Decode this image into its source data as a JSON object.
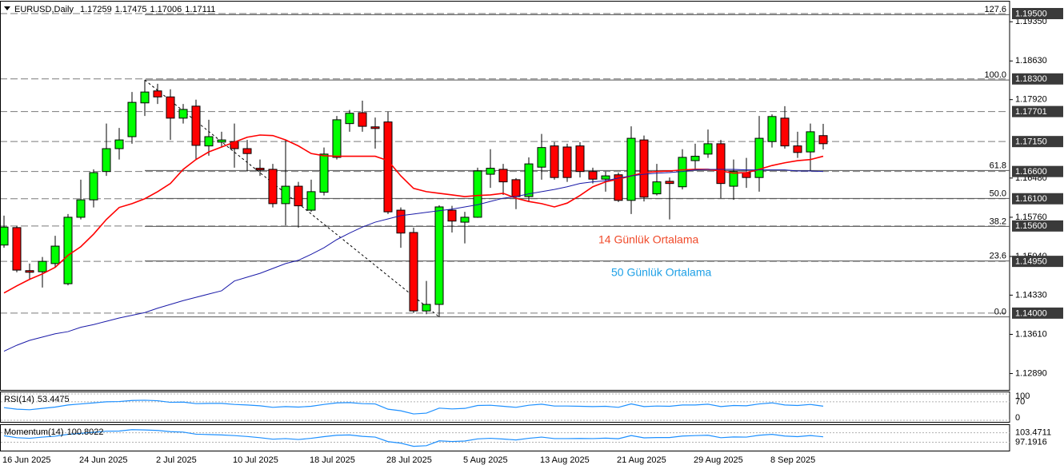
{
  "chart_data": {
    "type": "candlestick",
    "header": {
      "symbol": "EURUSD,Daily",
      "open": 1.17259,
      "high": 1.17475,
      "low": 1.17006,
      "close": 1.17111
    },
    "x": [
      "16 Jun 2025",
      null,
      null,
      null,
      null,
      null,
      "24 Jun 2025",
      null,
      null,
      null,
      null,
      null,
      "2 Jul 2025",
      null,
      null,
      null,
      null,
      null,
      "10 Jul 2025",
      null,
      null,
      null,
      null,
      null,
      "18 Jul 2025",
      null,
      null,
      null,
      null,
      null,
      "28 Jul 2025",
      null,
      null,
      null,
      null,
      null,
      "5 Aug 2025",
      null,
      null,
      null,
      null,
      null,
      "13 Aug 2025",
      null,
      null,
      null,
      null,
      null,
      "21 Aug 2025",
      null,
      null,
      null,
      null,
      null,
      "29 Aug 2025",
      null,
      null,
      null,
      null,
      null,
      "8 Sep 2025",
      null,
      null,
      null,
      null
    ],
    "open": [
      1.1525,
      1.1557,
      1.1478,
      1.1476,
      1.1491,
      1.1454,
      1.1576,
      1.1608,
      1.166,
      1.1702,
      1.1724,
      1.1786,
      1.1808,
      1.1797,
      1.1758,
      1.178,
      1.1707,
      1.1714,
      1.1715,
      1.1702,
      1.1666,
      1.1664,
      1.1601,
      1.1633,
      1.1589,
      1.1622,
      1.1686,
      1.1748,
      1.1768,
      1.1742,
      1.1751,
      1.1589,
      1.1548,
      1.1404,
      1.1416,
      1.1589,
      1.1567,
      1.1576,
      1.1655,
      1.1664,
      1.1645,
      1.1614,
      1.1668,
      1.1707,
      1.1705,
      1.1707,
      1.166,
      1.1646,
      1.1654,
      1.1607,
      1.1718,
      1.1619,
      1.1642,
      1.1632,
      1.168,
      1.1692,
      1.1711,
      1.1633,
      1.1658,
      1.1649,
      1.1715,
      1.1758,
      1.1707,
      1.1696,
      1.17259
    ],
    "high": [
      1.1579,
      1.156,
      1.1491,
      1.1503,
      1.1542,
      1.1582,
      1.1645,
      1.1664,
      1.1748,
      1.174,
      1.1806,
      1.1828,
      1.1821,
      1.1811,
      1.1784,
      1.1792,
      1.1755,
      1.1733,
      1.1748,
      1.1718,
      1.1682,
      1.1674,
      1.1718,
      1.1641,
      1.1645,
      1.1704,
      1.1762,
      1.1773,
      1.179,
      1.1759,
      1.177,
      1.1594,
      1.1557,
      1.1459,
      1.1598,
      1.1597,
      1.1586,
      1.1667,
      1.1701,
      1.1674,
      1.1648,
      1.1686,
      1.1729,
      1.1714,
      1.1711,
      1.1714,
      1.1667,
      1.166,
      1.1658,
      1.1743,
      1.1726,
      1.1674,
      1.1649,
      1.1701,
      1.1711,
      1.1737,
      1.1718,
      1.1682,
      1.1685,
      1.1762,
      1.1765,
      1.178,
      1.1733,
      1.1748,
      1.17475
    ],
    "low": [
      1.152,
      1.1475,
      1.1462,
      1.1447,
      1.1484,
      1.1451,
      1.1572,
      1.1594,
      1.1652,
      1.1682,
      1.1711,
      1.1762,
      1.1784,
      1.1718,
      1.1748,
      1.1682,
      1.1689,
      1.1704,
      1.1667,
      1.166,
      1.1652,
      1.1594,
      1.1561,
      1.1557,
      1.1586,
      1.1616,
      1.1682,
      1.1733,
      1.1733,
      1.1702,
      1.1582,
      1.152,
      1.14,
      1.1398,
      1.1393,
      1.1548,
      1.1528,
      1.1575,
      1.163,
      1.1617,
      1.1591,
      1.1605,
      1.1645,
      1.1645,
      1.1641,
      1.1649,
      1.1638,
      1.1623,
      1.1604,
      1.1582,
      1.1605,
      1.1616,
      1.1572,
      1.1627,
      1.1664,
      1.1685,
      1.1611,
      1.1608,
      1.163,
      1.1623,
      1.1704,
      1.1702,
      1.1685,
      1.166,
      1.17006
    ],
    "close": [
      1.1558,
      1.1479,
      1.1475,
      1.1495,
      1.1523,
      1.1576,
      1.1608,
      1.1658,
      1.1702,
      1.1718,
      1.1787,
      1.1806,
      1.1797,
      1.1758,
      1.1774,
      1.1708,
      1.1724,
      1.1718,
      1.1702,
      1.1693,
      1.1663,
      1.1601,
      1.1633,
      1.1597,
      1.1623,
      1.1692,
      1.1755,
      1.1767,
      1.1743,
      1.1739,
      1.1586,
      1.1547,
      1.1404,
      1.1416,
      1.1595,
      1.1569,
      1.1576,
      1.1661,
      1.1666,
      1.1641,
      1.1614,
      1.1674,
      1.1704,
      1.1649,
      1.1649,
      1.166,
      1.1646,
      1.1652,
      1.1607,
      1.1721,
      1.1613,
      1.1641,
      1.1638,
      1.1686,
      1.1688,
      1.1711,
      1.1638,
      1.166,
      1.1649,
      1.1721,
      1.1761,
      1.1707,
      1.1695,
      1.1733,
      1.17111
    ],
    "up_color": "#00ff00",
    "down_color": "#ff0000",
    "ylim": [
      1.1259,
      1.1972
    ],
    "yticks": [
      {
        "value": 1.1289,
        "label": "1.12890"
      },
      {
        "value": 1.1361,
        "label": "1.13610"
      },
      {
        "value": 1.1433,
        "label": "1.14330"
      },
      {
        "value": 1.1504,
        "label": "1.15040"
      },
      {
        "value": 1.1576,
        "label": "1.15760"
      },
      {
        "value": 1.1648,
        "label": "1.16480"
      },
      {
        "value": 1.1792,
        "label": "1.17920"
      },
      {
        "value": 1.1863,
        "label": "1.18630"
      },
      {
        "value": 1.1935,
        "label": "1.19350"
      }
    ],
    "price_levels": [
      {
        "value": 1.195,
        "label": "1.19500"
      },
      {
        "value": 1.183,
        "label": "1.18300"
      },
      {
        "value": 1.17701,
        "label": "1.17701"
      },
      {
        "value": 1.1715,
        "label": "1.17150"
      },
      {
        "value": 1.166,
        "label": "1.16600"
      },
      {
        "value": 1.161,
        "label": "1.16100"
      },
      {
        "value": 1.156,
        "label": "1.15600"
      },
      {
        "value": 1.1495,
        "label": "1.14950"
      },
      {
        "value": 1.14,
        "label": "1.14000"
      }
    ],
    "fibonacci": {
      "high": 1.1828,
      "low": 1.1393,
      "levels": [
        127.6,
        {
          "value": 100,
          "label": "100.0"
        },
        61.8,
        {
          "value": 50,
          "label": "50.0"
        },
        38.2,
        23.6,
        {
          "value": 0,
          "label": "0.0"
        }
      ]
    },
    "series": [
      {
        "name": "14 Günlük Ortalama",
        "color": "#ff0000",
        "label_color": "#f04a2a",
        "values": [
          1.1437,
          1.145,
          1.1462,
          1.1472,
          1.1484,
          1.1506,
          1.1522,
          1.1545,
          1.1572,
          1.1594,
          1.1601,
          1.161,
          1.1623,
          1.1638,
          1.1664,
          1.1682,
          1.1696,
          1.1705,
          1.1714,
          1.1723,
          1.1727,
          1.1726,
          1.1718,
          1.1707,
          1.1693,
          1.1689,
          1.1688,
          1.1688,
          1.1688,
          1.1688,
          1.168,
          1.1652,
          1.1629,
          1.1623,
          1.162,
          1.1617,
          1.1614,
          1.1616,
          1.1617,
          1.162,
          1.1611,
          1.1605,
          1.1601,
          1.1595,
          1.1602,
          1.1616,
          1.1632,
          1.1641,
          1.1646,
          1.1652,
          1.1658,
          1.166,
          1.1661,
          1.1663,
          1.1664,
          1.1664,
          1.1661,
          1.1657,
          1.1658,
          1.1664,
          1.1671,
          1.1676,
          1.168,
          1.1682,
          1.1688
        ]
      },
      {
        "name": "50 Günlük Ortalama",
        "color": "#1a1aa8",
        "label_color": "#1ea0e6",
        "values": [
          1.133,
          1.1341,
          1.135,
          1.1356,
          1.1362,
          1.1366,
          1.1374,
          1.1379,
          1.1385,
          1.1391,
          1.1396,
          1.1401,
          1.1409,
          1.1416,
          1.1423,
          1.1429,
          1.1435,
          1.1441,
          1.1459,
          1.1466,
          1.1473,
          1.1482,
          1.1491,
          1.1497,
          1.1508,
          1.152,
          1.1535,
          1.1547,
          1.1558,
          1.1567,
          1.1573,
          1.1579,
          1.1582,
          1.1585,
          1.1588,
          1.1591,
          1.1595,
          1.1599,
          1.1605,
          1.1611,
          1.1614,
          1.1619,
          1.1623,
          1.1627,
          1.1632,
          1.1638,
          1.1641,
          1.1643,
          1.1648,
          1.1652,
          1.1655,
          1.1657,
          1.1658,
          1.166,
          1.1663,
          1.1664,
          1.1664,
          1.1664,
          1.1663,
          1.1663,
          1.1663,
          1.1663,
          1.1661,
          1.1661,
          1.166
        ]
      }
    ],
    "indicators": [
      {
        "name": "RSI(14)",
        "last": 53.4475,
        "color": "#1e90ff",
        "ylim": [
          0,
          100
        ],
        "yticks": [
          100,
          70,
          0
        ],
        "values": [
          48,
          42,
          40,
          45,
          50,
          58,
          62,
          66,
          70,
          71,
          75,
          76,
          74,
          68,
          69,
          63,
          64,
          64,
          60,
          58,
          55,
          49,
          52,
          50,
          53,
          60,
          66,
          67,
          63,
          62,
          42,
          36,
          24,
          27,
          46,
          43,
          45,
          56,
          57,
          53,
          49,
          57,
          61,
          54,
          54,
          53,
          52,
          53,
          49,
          62,
          52,
          54,
          53,
          58,
          58,
          61,
          52,
          56,
          55,
          62,
          66,
          58,
          56,
          60,
          53.4475
        ]
      },
      {
        "name": "Momentum(14)",
        "last": 100.8022,
        "color": "#1e90ff",
        "ylim": [
          92.7,
          107.5
        ],
        "yticks": [
          103.4711,
          97.1916
        ],
        "values": [
          101.5,
          100.2,
          99.8,
          100.6,
          101.2,
          102.4,
          103.1,
          103.8,
          104.5,
          104.6,
          105.5,
          105.3,
          105.0,
          104.2,
          103.9,
          102.5,
          102.3,
          102.0,
          101.6,
          101.0,
          100.2,
          99.2,
          99.6,
          99.0,
          99.8,
          100.9,
          101.8,
          102.0,
          101.1,
          100.6,
          97.6,
          96.6,
          94.5,
          94.9,
          98.1,
          97.7,
          98.0,
          99.4,
          99.8,
          99.3,
          98.7,
          99.8,
          100.6,
          99.6,
          99.6,
          99.7,
          99.6,
          99.9,
          99.5,
          101.6,
          100.1,
          100.3,
          100.3,
          101.3,
          101.6,
          101.8,
          100.2,
          100.7,
          100.6,
          101.8,
          102.4,
          101.3,
          100.9,
          101.6,
          100.8022
        ]
      }
    ]
  }
}
